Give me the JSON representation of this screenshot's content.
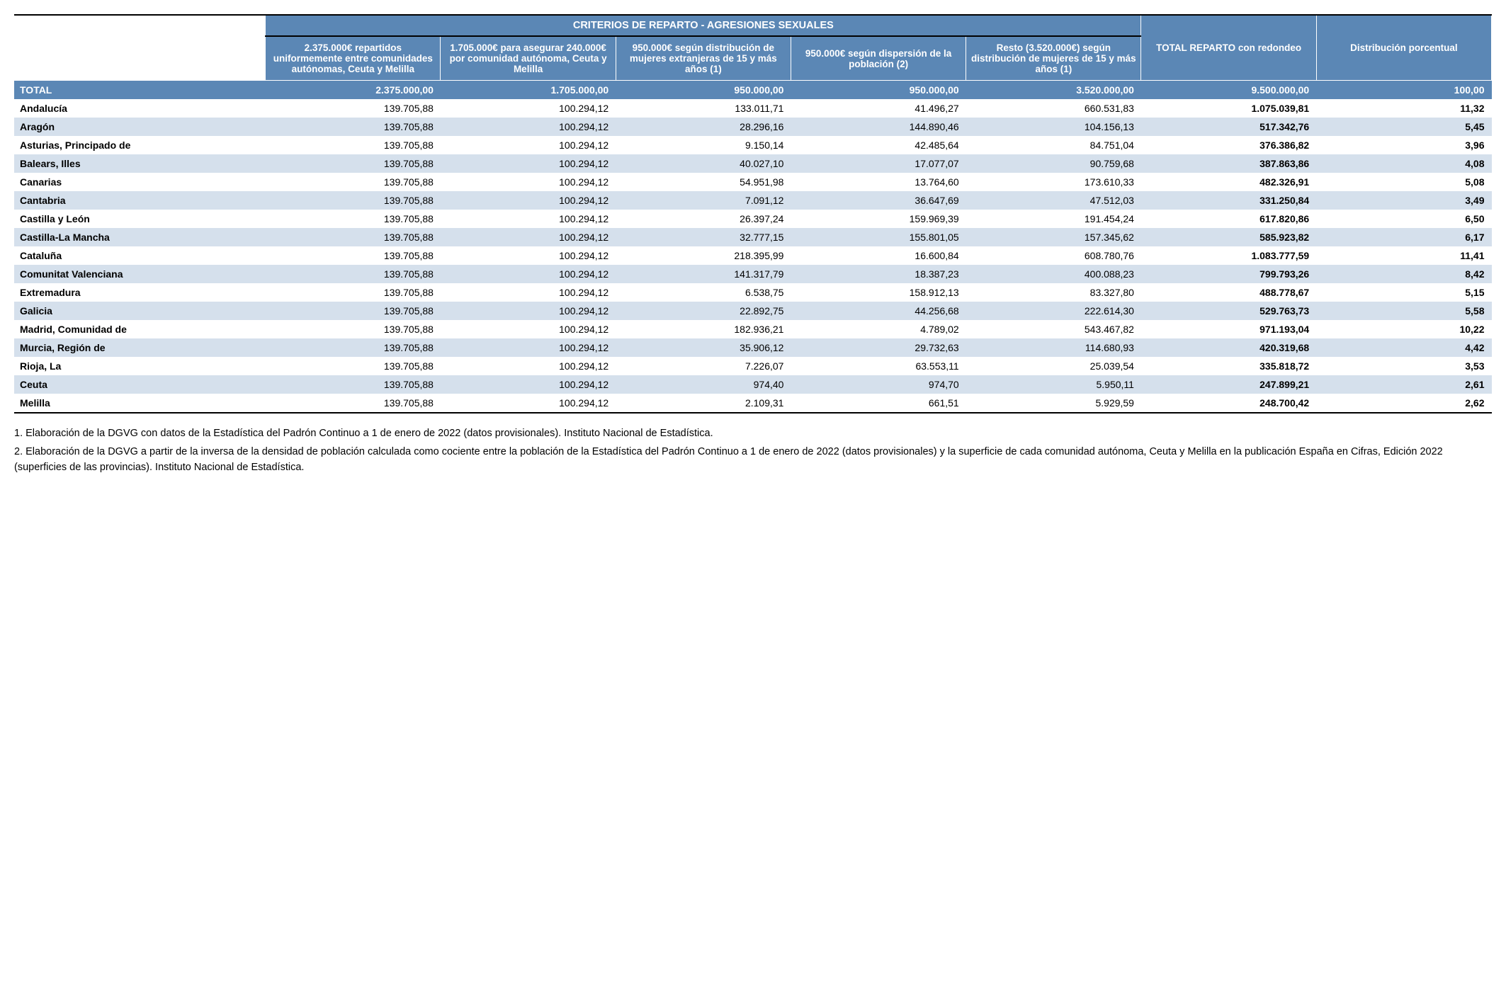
{
  "table": {
    "main_header": "CRITERIOS DE REPARTO - AGRESIONES SEXUALES",
    "columns": [
      "2.375.000€ repartidos uniformemente entre comunidades autónomas, Ceuta y Melilla",
      "1.705.000€ para asegurar 240.000€ por comunidad autónoma, Ceuta y Melilla",
      "950.000€ según distribución de mujeres extranjeras de 15 y más años (1)",
      "950.000€ según dispersión de la población (2)",
      "Resto (3.520.000€) según distribución de mujeres de 15 y más años (1)",
      "TOTAL REPARTO con redondeo",
      "Distribución porcentual"
    ],
    "total_row": {
      "label": "TOTAL",
      "values": [
        "2.375.000,00",
        "1.705.000,00",
        "950.000,00",
        "950.000,00",
        "3.520.000,00",
        "9.500.000,00",
        "100,00"
      ]
    },
    "rows": [
      {
        "region": "Andalucía",
        "v": [
          "139.705,88",
          "100.294,12",
          "133.011,71",
          "41.496,27",
          "660.531,83",
          "1.075.039,81",
          "11,32"
        ]
      },
      {
        "region": "Aragón",
        "v": [
          "139.705,88",
          "100.294,12",
          "28.296,16",
          "144.890,46",
          "104.156,13",
          "517.342,76",
          "5,45"
        ]
      },
      {
        "region": "Asturias, Principado de",
        "v": [
          "139.705,88",
          "100.294,12",
          "9.150,14",
          "42.485,64",
          "84.751,04",
          "376.386,82",
          "3,96"
        ]
      },
      {
        "region": "Balears, Illes",
        "v": [
          "139.705,88",
          "100.294,12",
          "40.027,10",
          "17.077,07",
          "90.759,68",
          "387.863,86",
          "4,08"
        ]
      },
      {
        "region": "Canarias",
        "v": [
          "139.705,88",
          "100.294,12",
          "54.951,98",
          "13.764,60",
          "173.610,33",
          "482.326,91",
          "5,08"
        ]
      },
      {
        "region": "Cantabria",
        "v": [
          "139.705,88",
          "100.294,12",
          "7.091,12",
          "36.647,69",
          "47.512,03",
          "331.250,84",
          "3,49"
        ]
      },
      {
        "region": "Castilla y León",
        "v": [
          "139.705,88",
          "100.294,12",
          "26.397,24",
          "159.969,39",
          "191.454,24",
          "617.820,86",
          "6,50"
        ]
      },
      {
        "region": "Castilla-La Mancha",
        "v": [
          "139.705,88",
          "100.294,12",
          "32.777,15",
          "155.801,05",
          "157.345,62",
          "585.923,82",
          "6,17"
        ]
      },
      {
        "region": "Cataluña",
        "v": [
          "139.705,88",
          "100.294,12",
          "218.395,99",
          "16.600,84",
          "608.780,76",
          "1.083.777,59",
          "11,41"
        ]
      },
      {
        "region": "Comunitat Valenciana",
        "v": [
          "139.705,88",
          "100.294,12",
          "141.317,79",
          "18.387,23",
          "400.088,23",
          "799.793,26",
          "8,42"
        ]
      },
      {
        "region": "Extremadura",
        "v": [
          "139.705,88",
          "100.294,12",
          "6.538,75",
          "158.912,13",
          "83.327,80",
          "488.778,67",
          "5,15"
        ]
      },
      {
        "region": "Galicia",
        "v": [
          "139.705,88",
          "100.294,12",
          "22.892,75",
          "44.256,68",
          "222.614,30",
          "529.763,73",
          "5,58"
        ]
      },
      {
        "region": "Madrid, Comunidad de",
        "v": [
          "139.705,88",
          "100.294,12",
          "182.936,21",
          "4.789,02",
          "543.467,82",
          "971.193,04",
          "10,22"
        ]
      },
      {
        "region": "Murcia, Región de",
        "v": [
          "139.705,88",
          "100.294,12",
          "35.906,12",
          "29.732,63",
          "114.680,93",
          "420.319,68",
          "4,42"
        ]
      },
      {
        "region": "Rioja, La",
        "v": [
          "139.705,88",
          "100.294,12",
          "7.226,07",
          "63.553,11",
          "25.039,54",
          "335.818,72",
          "3,53"
        ]
      },
      {
        "region": "Ceuta",
        "v": [
          "139.705,88",
          "100.294,12",
          "974,40",
          "974,70",
          "5.950,11",
          "247.899,21",
          "2,61"
        ]
      },
      {
        "region": "Melilla",
        "v": [
          "139.705,88",
          "100.294,12",
          "2.109,31",
          "661,51",
          "5.929,59",
          "248.700,42",
          "2,62"
        ]
      }
    ],
    "header_bg": "#5b87b5",
    "header_fg": "#ffffff",
    "alt_row_bg": "#d5e0ec",
    "row_bg": "#ffffff"
  },
  "notes": {
    "n1": "1. Elaboración de la DGVG con datos de la Estadística del Padrón Continuo a 1 de enero de 2022 (datos provisionales). Instituto Nacional de Estadística.",
    "n2": "2. Elaboración de la DGVG a partir de la inversa de la densidad de población calculada como cociente entre la población de la Estadística del Padrón Continuo a 1 de enero de 2022 (datos provisionales) y la superficie de cada comunidad autónoma, Ceuta y Melilla en la publicación España en Cifras, Edición 2022 (superficies de las provincias). Instituto Nacional de Estadística."
  }
}
